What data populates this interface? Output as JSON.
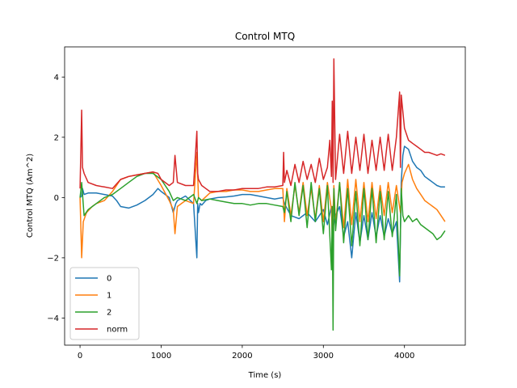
{
  "chart_data": {
    "type": "line",
    "title": "Control MTQ",
    "xlabel": "Time (s)",
    "ylabel": "Control MTQ (Am^2)",
    "xlim": [
      -190,
      4750
    ],
    "ylim": [
      -4.9,
      5.0
    ],
    "xticks": [
      0,
      1000,
      2000,
      3000,
      4000
    ],
    "xtick_labels": [
      "0",
      "1000",
      "2000",
      "3000",
      "4000"
    ],
    "yticks": [
      -4,
      -2,
      0,
      2,
      4
    ],
    "ytick_labels": [
      "−4",
      "−2",
      "0",
      "2",
      "4"
    ],
    "grid": false,
    "legend_position": "lower-left",
    "series": [
      {
        "name": "0",
        "color": "#1f77b4",
        "x": [
          0,
          20,
          30,
          50,
          100,
          200,
          300,
          400,
          450,
          500,
          600,
          700,
          800,
          900,
          960,
          1000,
          1100,
          1150,
          1180,
          1200,
          1300,
          1400,
          1440,
          1450,
          1460,
          1480,
          1500,
          1550,
          1600,
          1700,
          1800,
          1900,
          2000,
          2100,
          2200,
          2300,
          2400,
          2500,
          2520,
          2600,
          2700,
          2800,
          2900,
          3000,
          3050,
          3100,
          3120,
          3150,
          3200,
          3250,
          3300,
          3350,
          3400,
          3450,
          3500,
          3550,
          3600,
          3650,
          3700,
          3750,
          3800,
          3850,
          3900,
          3940,
          3960,
          3980,
          4000,
          4050,
          4100,
          4150,
          4200,
          4250,
          4300,
          4350,
          4400,
          4450,
          4500
        ],
        "y": [
          0,
          0.05,
          0.3,
          0.1,
          0.15,
          0.15,
          0.1,
          0.05,
          -0.1,
          -0.3,
          -0.35,
          -0.25,
          -0.1,
          0.1,
          0.3,
          0.2,
          0.0,
          -0.5,
          -0.2,
          -0.1,
          0.05,
          -0.2,
          -2.0,
          -0.2,
          -0.5,
          -0.2,
          -0.25,
          -0.1,
          -0.05,
          0.0,
          0.02,
          0.05,
          0.1,
          0.1,
          0.05,
          0.0,
          -0.05,
          0.0,
          -0.2,
          -0.6,
          -0.7,
          -0.5,
          -0.8,
          -0.4,
          -0.9,
          -0.3,
          -1.0,
          -0.6,
          -0.3,
          -1.3,
          -0.8,
          -2.0,
          -0.5,
          -1.5,
          -0.6,
          -1.4,
          -0.5,
          -1.3,
          -0.6,
          -1.3,
          -0.7,
          -1.2,
          -0.8,
          -2.8,
          0.5,
          1.4,
          1.7,
          1.6,
          1.2,
          1.0,
          0.9,
          0.7,
          0.6,
          0.5,
          0.4,
          0.35,
          0.35
        ]
      },
      {
        "name": "1",
        "color": "#ff7f0e",
        "x": [
          0,
          20,
          40,
          80,
          150,
          200,
          300,
          400,
          500,
          600,
          700,
          800,
          900,
          1000,
          1100,
          1150,
          1170,
          1200,
          1300,
          1400,
          1440,
          1460,
          1500,
          1600,
          1700,
          1800,
          1900,
          2000,
          2100,
          2200,
          2300,
          2400,
          2500,
          2520,
          2550,
          2600,
          2650,
          2700,
          2750,
          2800,
          2850,
          2900,
          2950,
          3000,
          3050,
          3100,
          3110,
          3130,
          3150,
          3200,
          3250,
          3300,
          3350,
          3400,
          3450,
          3500,
          3550,
          3600,
          3650,
          3700,
          3750,
          3800,
          3850,
          3900,
          3950,
          3970,
          4000,
          4050,
          4100,
          4150,
          4200,
          4250,
          4300,
          4350,
          4400,
          4450,
          4500
        ],
        "y": [
          0,
          -2.0,
          -0.8,
          -0.5,
          -0.3,
          -0.2,
          -0.1,
          0.2,
          0.6,
          0.7,
          0.75,
          0.8,
          0.85,
          0.4,
          -0.1,
          -0.4,
          -1.2,
          -0.3,
          -0.1,
          -0.2,
          1.5,
          0.0,
          -0.1,
          0.15,
          0.2,
          0.2,
          0.25,
          0.25,
          0.2,
          0.2,
          0.25,
          0.3,
          0.3,
          -0.8,
          0.3,
          -0.6,
          0.4,
          -0.5,
          0.5,
          -0.6,
          0.3,
          -0.7,
          0.4,
          -0.8,
          0.5,
          -0.4,
          -1.4,
          0.4,
          -0.9,
          0.5,
          -1.0,
          0.6,
          -0.9,
          0.6,
          -0.8,
          0.5,
          -0.8,
          0.5,
          -0.7,
          0.4,
          -0.6,
          0.5,
          -0.5,
          0.4,
          -0.5,
          0.5,
          0.8,
          1.1,
          0.6,
          0.3,
          0.1,
          -0.1,
          -0.2,
          -0.3,
          -0.4,
          -0.6,
          -0.8
        ]
      },
      {
        "name": "2",
        "color": "#2ca02c",
        "x": [
          0,
          20,
          50,
          100,
          200,
          300,
          400,
          500,
          600,
          700,
          800,
          900,
          1000,
          1100,
          1150,
          1200,
          1300,
          1400,
          1440,
          1460,
          1500,
          1600,
          1700,
          1800,
          1900,
          2000,
          2100,
          2200,
          2300,
          2400,
          2500,
          2520,
          2550,
          2600,
          2650,
          2700,
          2750,
          2800,
          2850,
          2900,
          2950,
          3000,
          3050,
          3100,
          3110,
          3120,
          3130,
          3150,
          3200,
          3250,
          3300,
          3350,
          3400,
          3450,
          3500,
          3550,
          3600,
          3650,
          3700,
          3750,
          3800,
          3850,
          3900,
          3940,
          3960,
          3980,
          4000,
          4050,
          4100,
          4150,
          4200,
          4250,
          4300,
          4350,
          4400,
          4450,
          4500
        ],
        "y": [
          0,
          0.5,
          -0.6,
          -0.4,
          -0.2,
          0.0,
          0.1,
          0.3,
          0.5,
          0.7,
          0.8,
          0.8,
          0.6,
          0.2,
          -0.1,
          0.0,
          -0.1,
          0.1,
          -0.2,
          0.0,
          -0.1,
          -0.05,
          -0.1,
          -0.15,
          -0.2,
          -0.2,
          -0.25,
          -0.2,
          -0.2,
          -0.25,
          -0.3,
          -0.5,
          0.2,
          -0.8,
          0.5,
          -0.6,
          0.4,
          -1.0,
          0.5,
          -0.8,
          0.3,
          -1.2,
          0.4,
          -2.4,
          -0.3,
          -4.4,
          0.3,
          -1.1,
          0.5,
          -1.5,
          0.3,
          -1.6,
          0.2,
          -1.6,
          0.3,
          -1.4,
          0.3,
          -1.5,
          0.2,
          -1.4,
          0.2,
          -1.3,
          0.1,
          -2.6,
          0.3,
          -0.6,
          -0.8,
          -0.6,
          -0.8,
          -0.7,
          -0.9,
          -1.0,
          -1.1,
          -1.2,
          -1.4,
          -1.3,
          -1.1
        ]
      },
      {
        "name": "norm",
        "color": "#d62728",
        "x": [
          0,
          20,
          30,
          50,
          100,
          200,
          300,
          400,
          500,
          600,
          700,
          800,
          900,
          960,
          1000,
          1100,
          1150,
          1170,
          1200,
          1300,
          1400,
          1440,
          1450,
          1460,
          1500,
          1550,
          1600,
          1700,
          1800,
          1900,
          2000,
          2100,
          2200,
          2300,
          2400,
          2500,
          2510,
          2520,
          2550,
          2600,
          2650,
          2700,
          2750,
          2800,
          2850,
          2900,
          2950,
          3000,
          3050,
          3080,
          3100,
          3110,
          3120,
          3130,
          3150,
          3200,
          3250,
          3300,
          3350,
          3400,
          3450,
          3500,
          3550,
          3600,
          3650,
          3700,
          3750,
          3800,
          3850,
          3900,
          3940,
          3950,
          3960,
          4000,
          4050,
          4100,
          4150,
          4200,
          4250,
          4300,
          4350,
          4400,
          4450,
          4500
        ],
        "y": [
          0.3,
          2.9,
          1.0,
          0.8,
          0.5,
          0.4,
          0.35,
          0.3,
          0.6,
          0.7,
          0.75,
          0.8,
          0.85,
          0.8,
          0.6,
          0.4,
          0.5,
          1.4,
          0.5,
          0.4,
          0.4,
          2.2,
          0.8,
          0.6,
          0.4,
          0.3,
          0.2,
          0.2,
          0.25,
          0.25,
          0.3,
          0.3,
          0.3,
          0.35,
          0.35,
          0.4,
          1.5,
          0.5,
          0.9,
          0.4,
          1.1,
          0.5,
          1.2,
          0.6,
          1.1,
          0.5,
          1.3,
          0.6,
          1.0,
          1.9,
          0.7,
          3.2,
          0.5,
          4.6,
          0.6,
          2.1,
          0.8,
          2.2,
          0.8,
          2.0,
          0.9,
          2.1,
          0.8,
          1.9,
          0.9,
          2.0,
          0.9,
          2.1,
          0.9,
          2.0,
          3.5,
          1.0,
          3.4,
          2.3,
          1.9,
          1.8,
          1.7,
          1.6,
          1.5,
          1.5,
          1.45,
          1.4,
          1.45,
          1.4
        ]
      }
    ]
  }
}
